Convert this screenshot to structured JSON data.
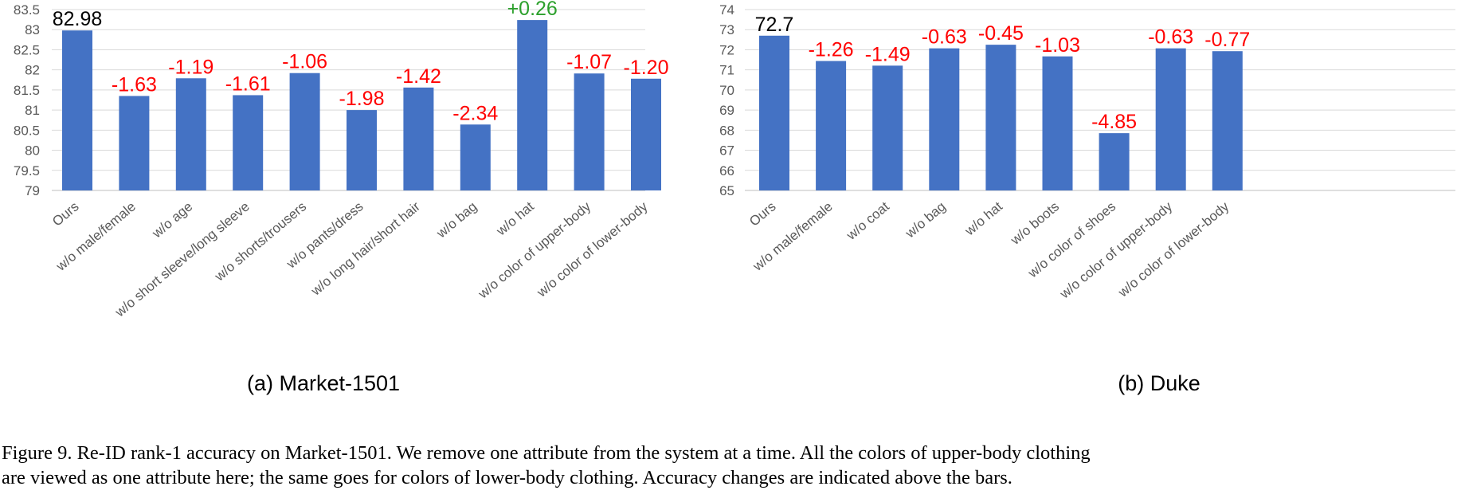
{
  "chart_data": [
    {
      "type": "bar",
      "title": "",
      "subtitle": "(a) Market-1501",
      "xlabel": "",
      "ylabel": "",
      "ylim": [
        79,
        83.5
      ],
      "yticks": [
        "79",
        "79.5",
        "80",
        "80.5",
        "81",
        "81.5",
        "82",
        "82.5",
        "83",
        "83.5"
      ],
      "grid": true,
      "bar_color": "#4472C4",
      "categories": [
        "Ours",
        "w/o male/female",
        "w/o age",
        "w/o short sleeve/long sleeve",
        "w/o shorts/trousers",
        "w/o pants/dress",
        "w/o long hair/short hair",
        "w/o bag",
        "w/o hat",
        "w/o color of upper-body",
        "w/o color of lower-body"
      ],
      "values": [
        82.98,
        81.35,
        81.79,
        81.37,
        81.92,
        81.0,
        81.56,
        80.64,
        83.24,
        81.91,
        81.78
      ],
      "data_labels": [
        "82.98",
        "-1.63",
        "-1.19",
        "-1.61",
        "-1.06",
        "-1.98",
        "-1.42",
        "-2.34",
        "+0.26",
        "-1.07",
        "-1.20"
      ],
      "label_colors": [
        "#000000",
        "#FF0000",
        "#FF0000",
        "#FF0000",
        "#FF0000",
        "#FF0000",
        "#FF0000",
        "#FF0000",
        "#2CA02C",
        "#FF0000",
        "#FF0000"
      ]
    },
    {
      "type": "bar",
      "title": "",
      "subtitle": "(b) Duke",
      "xlabel": "",
      "ylabel": "",
      "ylim": [
        65,
        74
      ],
      "yticks": [
        "65",
        "66",
        "67",
        "68",
        "69",
        "70",
        "71",
        "72",
        "73",
        "74"
      ],
      "grid": true,
      "bar_color": "#4472C4",
      "categories": [
        "Ours",
        "w/o male/female",
        "w/o coat",
        "w/o bag",
        "w/o hat",
        "w/o boots",
        "w/o color of shoes",
        "w/o color of upper-body",
        "w/o color of lower-body"
      ],
      "values": [
        72.7,
        71.44,
        71.21,
        72.07,
        72.25,
        71.67,
        67.85,
        72.07,
        71.93
      ],
      "data_labels": [
        "72.7",
        "-1.26",
        "-1.49",
        "-0.63",
        "-0.45",
        "-1.03",
        "-4.85",
        "-0.63",
        "-0.77"
      ],
      "label_colors": [
        "#000000",
        "#FF0000",
        "#FF0000",
        "#FF0000",
        "#FF0000",
        "#FF0000",
        "#FF0000",
        "#FF0000",
        "#FF0000"
      ]
    }
  ],
  "caption": {
    "line1": "Figure 9. Re-ID rank-1 accuracy on Market-1501. We remove one attribute from the system at a time. All the colors of upper-body clothing",
    "line2": "are viewed as one attribute here; the same goes for colors of lower-body clothing. Accuracy changes are indicated above the bars."
  }
}
